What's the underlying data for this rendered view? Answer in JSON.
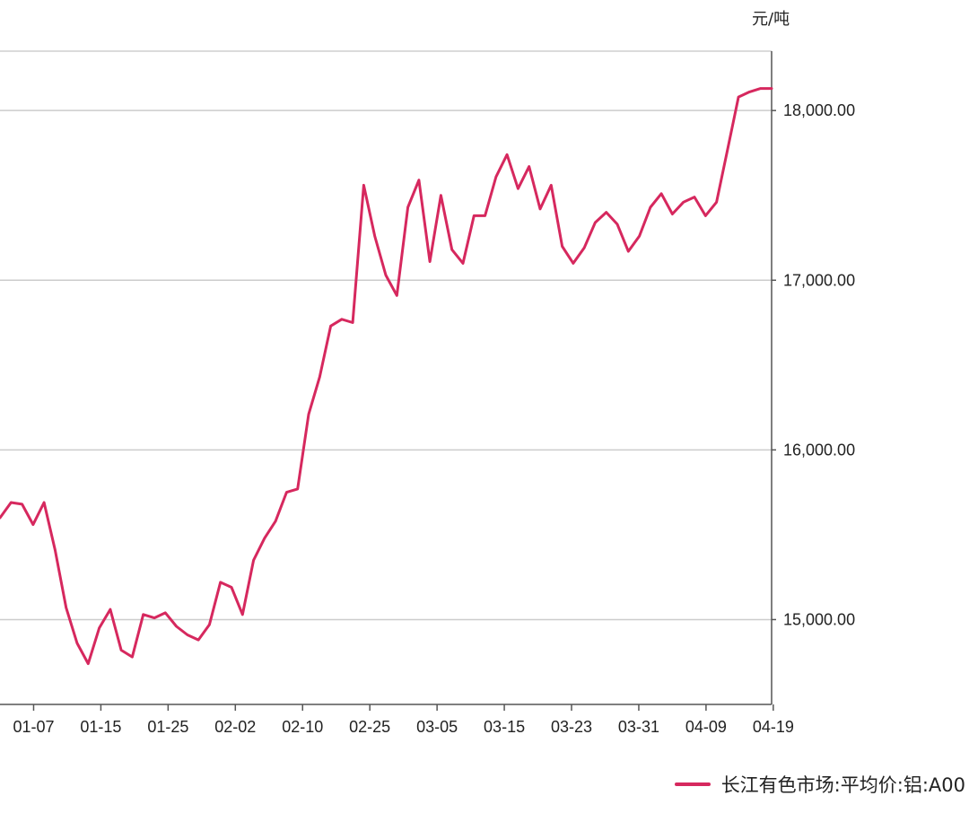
{
  "chart_data": {
    "type": "line",
    "ylabel": "元/吨",
    "ylim": [
      14500,
      18350
    ],
    "yticks": [
      15000,
      16000,
      17000,
      18000
    ],
    "ytick_labels": [
      "15,000.00",
      "16,000.00",
      "17,000.00",
      "18,000.00"
    ],
    "xtick_labels": [
      "01-07",
      "01-15",
      "01-25",
      "02-02",
      "02-10",
      "02-25",
      "03-05",
      "03-15",
      "03-23",
      "03-31",
      "04-09",
      "04-19"
    ],
    "grid": true,
    "legend_position": "bottom-right",
    "series": [
      {
        "name": "长江有色市场:平均价:铝:A00",
        "color": "#d6285e",
        "values": [
          15600,
          15690,
          15680,
          15560,
          15690,
          15410,
          15070,
          14860,
          14740,
          14950,
          15060,
          14820,
          14780,
          15030,
          15010,
          15040,
          14960,
          14910,
          14880,
          14970,
          15220,
          15190,
          15030,
          15350,
          15480,
          15580,
          15750,
          15770,
          16210,
          16430,
          16730,
          16770,
          16750,
          17560,
          17260,
          17030,
          16910,
          17430,
          17590,
          17110,
          17500,
          17180,
          17100,
          17380,
          17380,
          17610,
          17740,
          17540,
          17670,
          17420,
          17560,
          17200,
          17100,
          17190,
          17340,
          17400,
          17330,
          17170,
          17260,
          17430,
          17510,
          17390,
          17460,
          17490,
          17380,
          17460,
          17770,
          18080,
          18110,
          18130,
          18130
        ]
      }
    ]
  }
}
